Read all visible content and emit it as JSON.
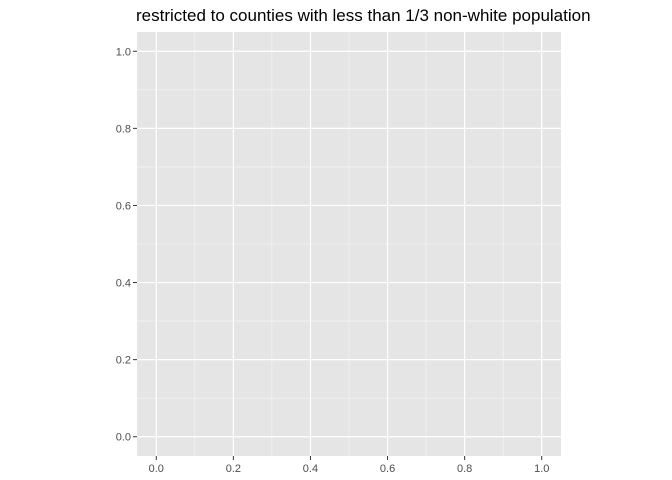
{
  "chart_data": {
    "type": "scatter",
    "title": "restricted to counties with less than 1/3 non-white population",
    "xlabel": "",
    "ylabel": "",
    "xlim": [
      -0.05,
      1.05
    ],
    "ylim": [
      -0.05,
      1.05
    ],
    "x_ticks": [
      0.0,
      0.2,
      0.4,
      0.6,
      0.8,
      1.0
    ],
    "y_ticks": [
      0.0,
      0.2,
      0.4,
      0.6,
      0.8,
      1.0
    ],
    "x_tick_labels": [
      "0.0",
      "0.2",
      "0.4",
      "0.6",
      "0.8",
      "1.0"
    ],
    "y_tick_labels": [
      "0.0",
      "0.2",
      "0.4",
      "0.6",
      "0.8",
      "1.0"
    ],
    "grid": true,
    "series": [],
    "colors": {
      "panel_background": "#e5e5e5",
      "grid_major": "#ffffff",
      "tick_text": "#4d4d4d",
      "tick_mark": "#333333",
      "title_text": "#000000"
    }
  }
}
